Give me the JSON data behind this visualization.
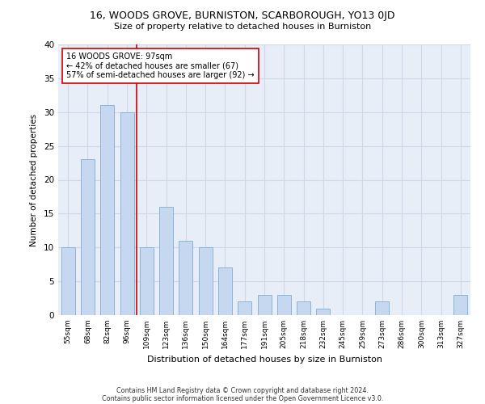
{
  "title1": "16, WOODS GROVE, BURNISTON, SCARBOROUGH, YO13 0JD",
  "title2": "Size of property relative to detached houses in Burniston",
  "xlabel": "Distribution of detached houses by size in Burniston",
  "ylabel": "Number of detached properties",
  "categories": [
    "55sqm",
    "68sqm",
    "82sqm",
    "96sqm",
    "109sqm",
    "123sqm",
    "136sqm",
    "150sqm",
    "164sqm",
    "177sqm",
    "191sqm",
    "205sqm",
    "218sqm",
    "232sqm",
    "245sqm",
    "259sqm",
    "273sqm",
    "286sqm",
    "300sqm",
    "313sqm",
    "327sqm"
  ],
  "values": [
    10,
    23,
    31,
    30,
    10,
    16,
    11,
    10,
    7,
    2,
    3,
    3,
    2,
    1,
    0,
    0,
    2,
    0,
    0,
    0,
    3
  ],
  "bar_color": "#c5d8f0",
  "bar_edge_color": "#8ab4d8",
  "annotation_line1": "16 WOODS GROVE: 97sqm",
  "annotation_line2": "← 42% of detached houses are smaller (67)",
  "annotation_line3": "57% of semi-detached houses are larger (92) →",
  "vline_color": "#cc0000",
  "annotation_box_color": "#ffffff",
  "annotation_box_edge": "#cc0000",
  "ylim": [
    0,
    40
  ],
  "yticks": [
    0,
    5,
    10,
    15,
    20,
    25,
    30,
    35,
    40
  ],
  "grid_color": "#d0d8e8",
  "bg_color": "#e8eef8",
  "footnote1": "Contains HM Land Registry data © Crown copyright and database right 2024.",
  "footnote2": "Contains public sector information licensed under the Open Government Licence v3.0."
}
